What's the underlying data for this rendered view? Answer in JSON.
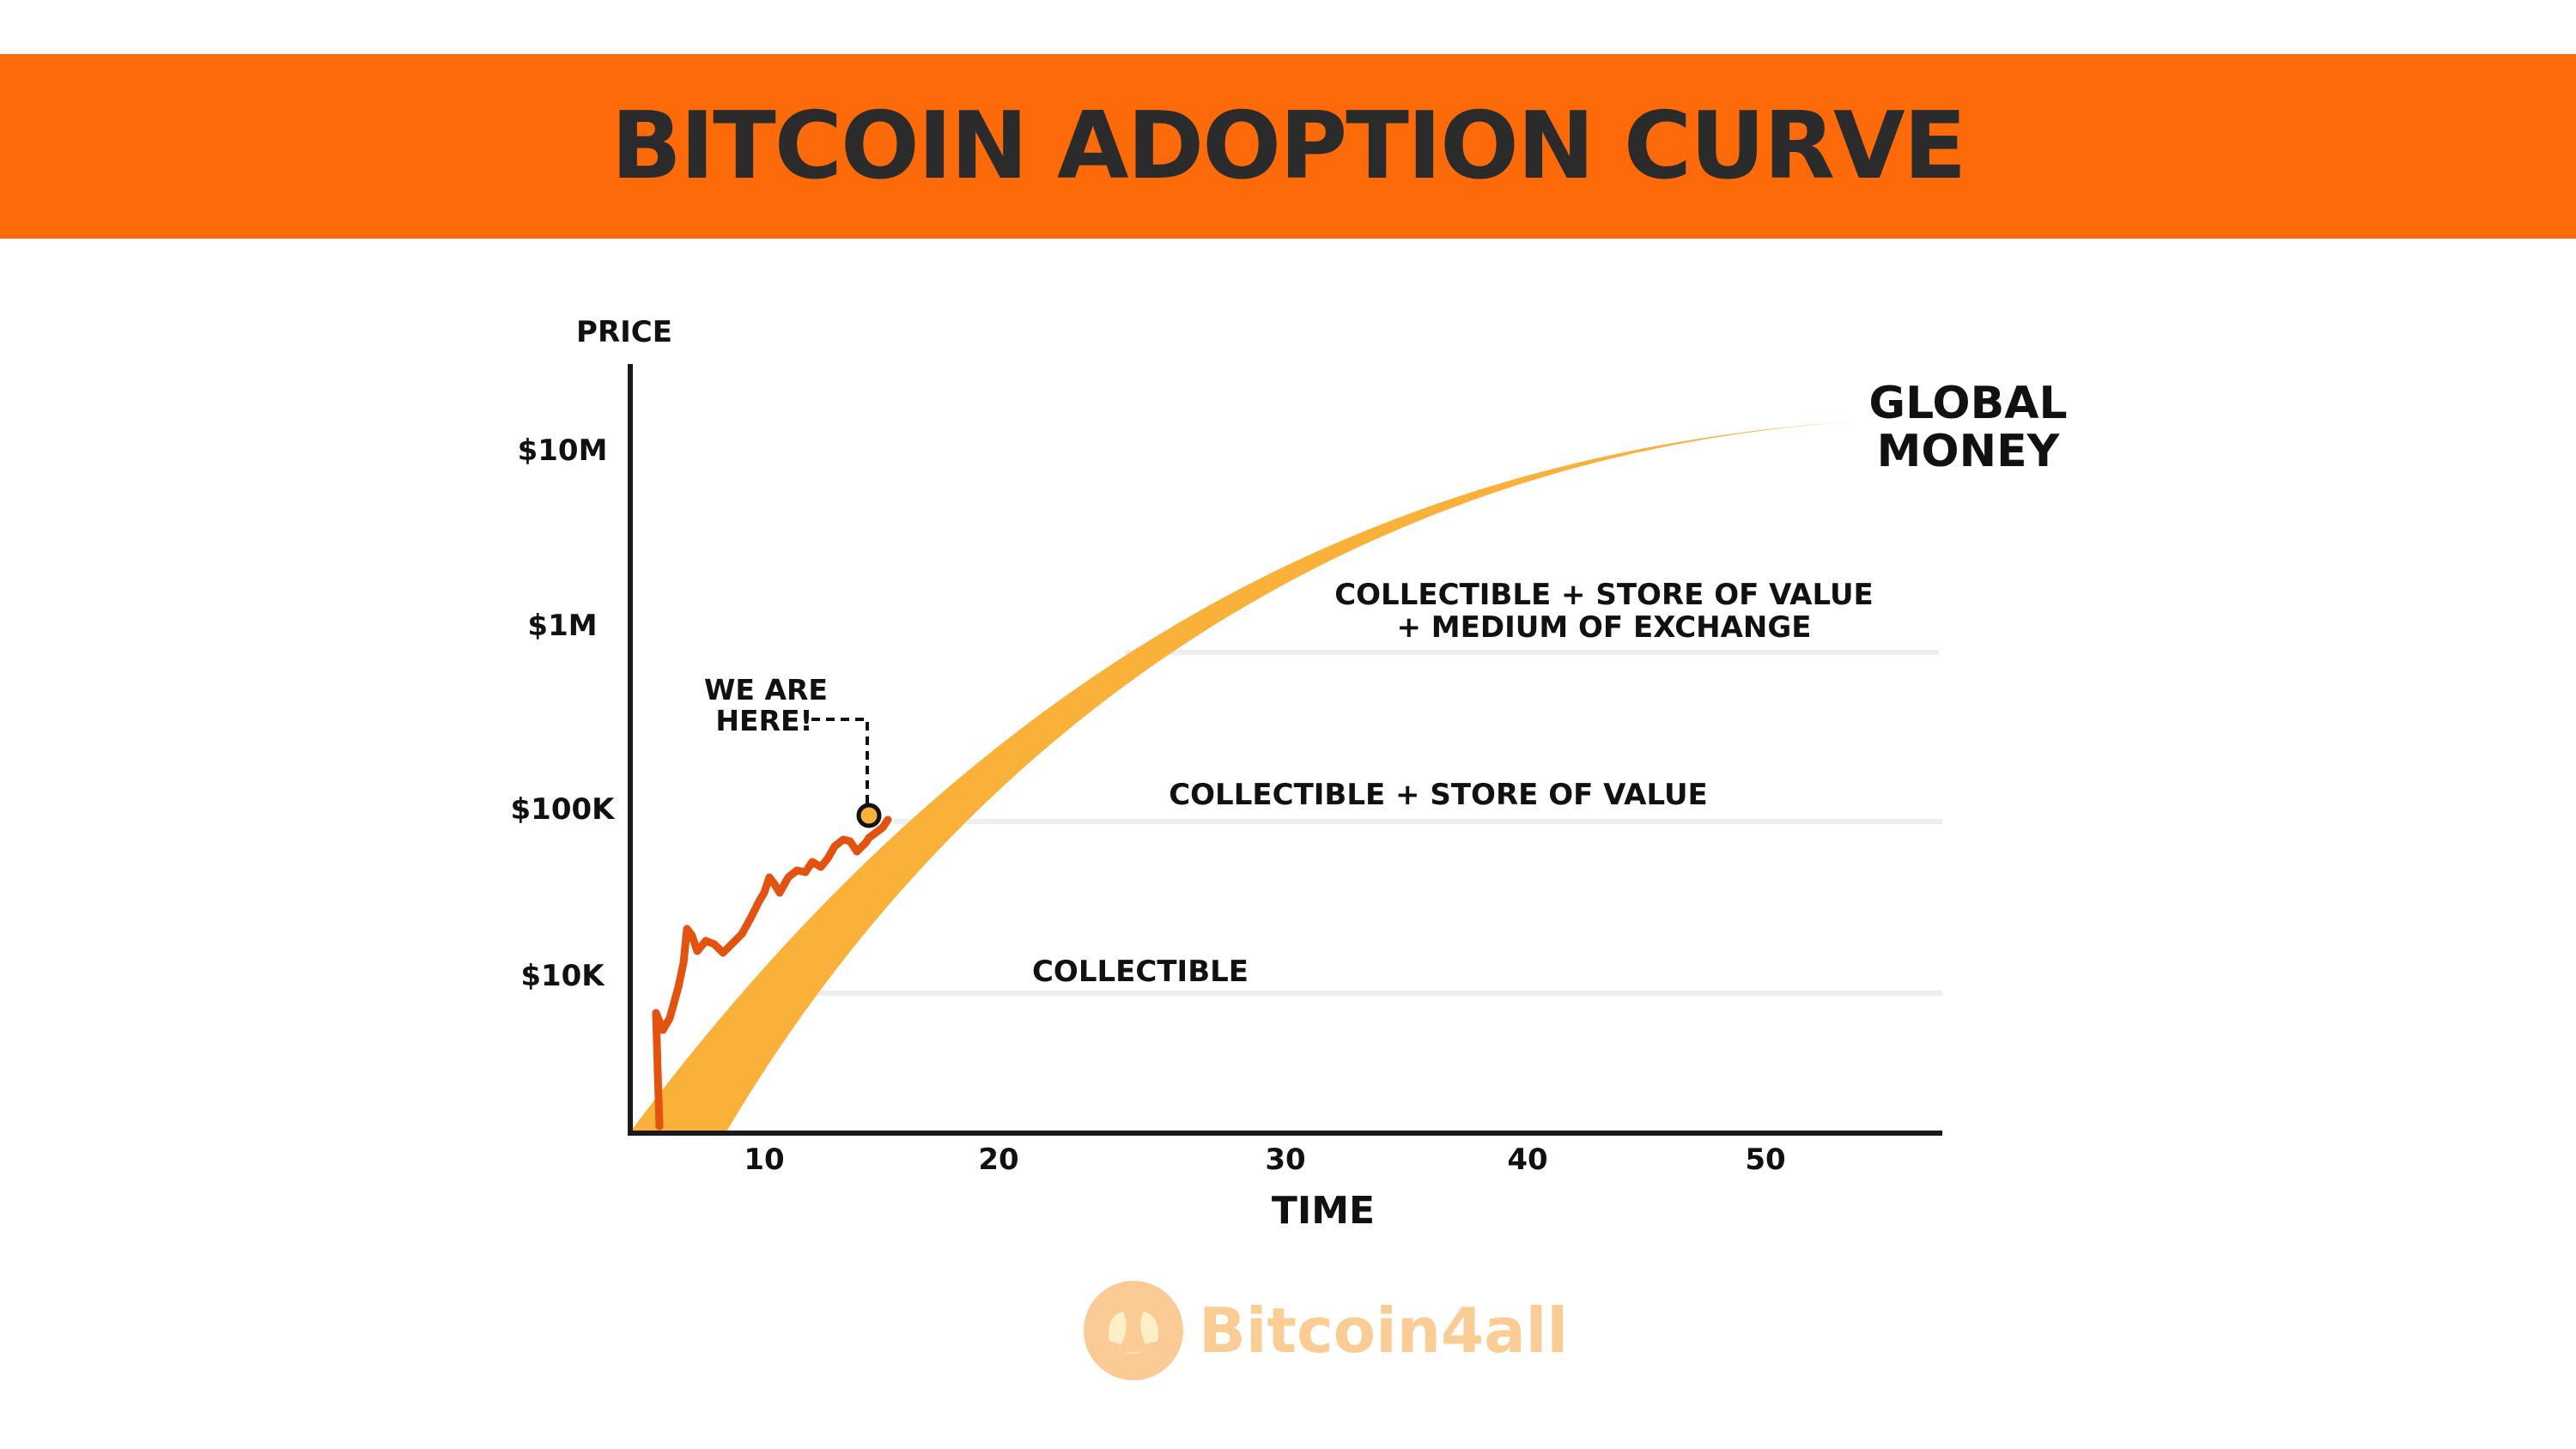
{
  "header": {
    "title": "BITCOIN ADOPTION CURVE"
  },
  "colors": {
    "banner": "#fc6a0a",
    "band": "#f9b13a",
    "price_line": "#e4520f",
    "axis": "#1a1a1a",
    "phase_line": "#eeeeee"
  },
  "chart_data": {
    "type": "line",
    "title": "BITCOIN ADOPTION CURVE",
    "xlabel": "TIME",
    "ylabel": "PRICE",
    "y_scale": "log",
    "x_ticks": [
      "10",
      "20",
      "30",
      "40",
      "50"
    ],
    "y_ticks": [
      "$10M",
      "$1M",
      "$100K",
      "$10K"
    ],
    "series": [
      {
        "kind": "adoption-band",
        "x": [
          0,
          5,
          10,
          15,
          20,
          25,
          30,
          35,
          40,
          45,
          50,
          53
        ],
        "y_upper": [
          1000,
          12000,
          60000,
          220000,
          650000,
          1500000,
          3200000,
          5800000,
          8800000,
          11500000,
          13000000,
          12800000
        ],
        "y_lower": [
          1000,
          1000,
          9000,
          55000,
          230000,
          700000,
          1800000,
          3900000,
          7000000,
          10300000,
          12600000,
          12800000
        ]
      },
      {
        "kind": "price-history",
        "x": [
          1,
          1.3,
          1.6,
          2,
          2.4,
          3,
          3.6,
          4.2,
          5,
          5.6,
          6.3,
          7,
          7.6,
          8.3,
          9,
          9.6,
          10.3,
          11,
          11.4,
          11.9,
          12.4,
          12.9,
          13.3
        ],
        "y": [
          1000,
          1000,
          14000,
          10000,
          16000,
          26000,
          23000,
          25000,
          28000,
          34000,
          48000,
          43000,
          52000,
          47000,
          53000,
          62000,
          58000,
          64000,
          60000,
          65000,
          68000,
          75000,
          90000
        ]
      }
    ],
    "marker": {
      "label": "WE ARE HERE!",
      "x": 13.3,
      "y": 90000
    },
    "phases": [
      {
        "label": "COLLECTIBLE",
        "level": "$10K"
      },
      {
        "label": "COLLECTIBLE + STORE OF VALUE",
        "level": "$100K"
      },
      {
        "label_line1": "COLLECTIBLE + STORE OF VALUE",
        "label_line2": "+ MEDIUM OF EXCHANGE",
        "level": "$1M"
      }
    ],
    "end_label_line1": "GLOBAL",
    "end_label_line2": "MONEY",
    "marker_line1": "WE ARE",
    "marker_line2": "HERE!"
  },
  "watermark": {
    "text": "Bitcoin4all"
  }
}
